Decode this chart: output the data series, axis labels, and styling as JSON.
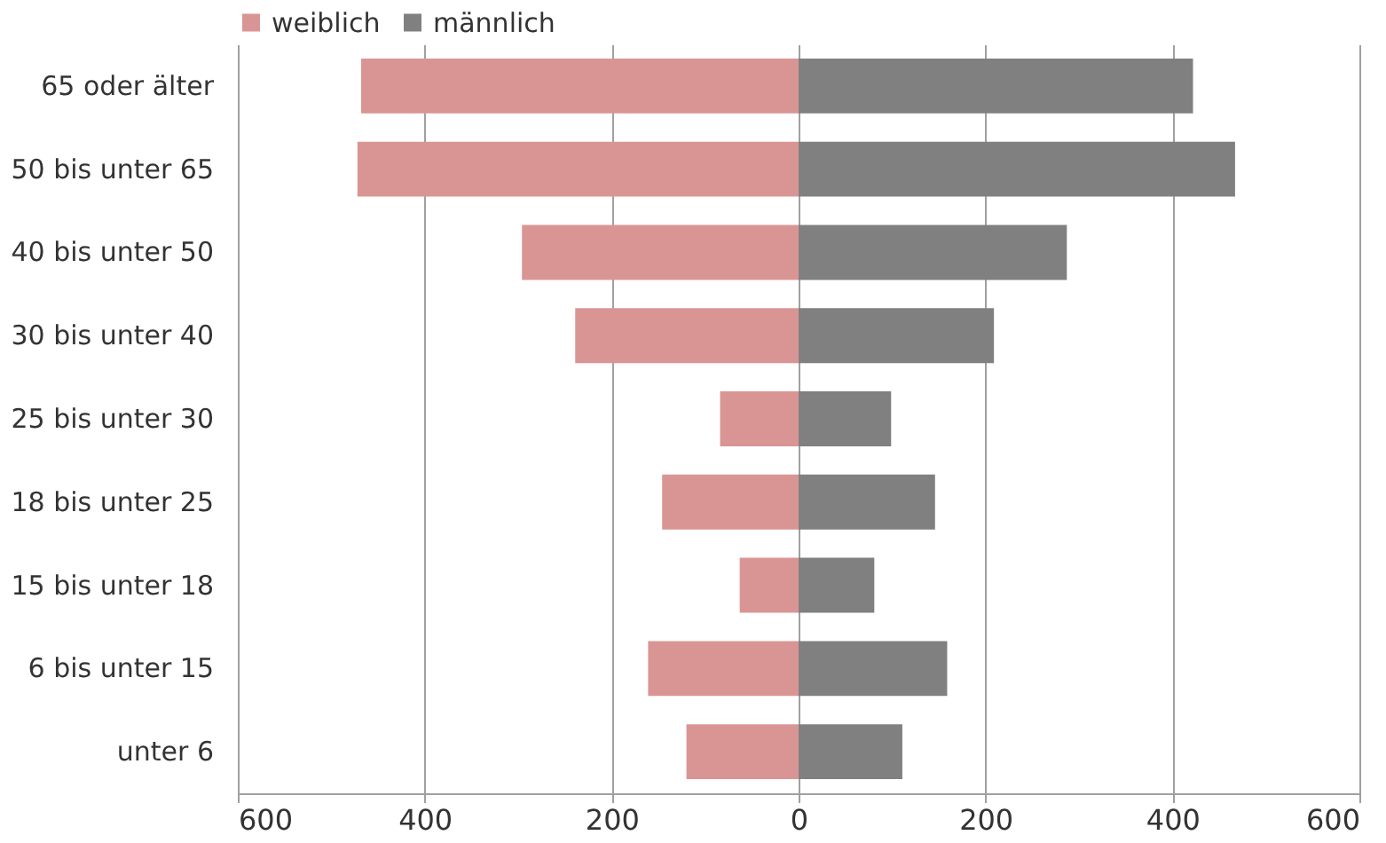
{
  "chart_data": {
    "type": "bar",
    "orientation": "horizontal",
    "stacked": true,
    "categories": [
      "65 oder älter",
      "50 bis unter 65",
      "40 bis unter 50",
      "30 bis unter 40",
      "25 bis unter 30",
      "18 bis unter 25",
      "15 bis unter 18",
      "6 bis unter 15",
      "unter 6"
    ],
    "series": [
      {
        "name": "weiblich",
        "color": "#d99594",
        "values": [
          -468,
          -472,
          -296,
          -239,
          -84,
          -146,
          -63,
          -161,
          -120
        ]
      },
      {
        "name": "männlich",
        "color": "#808080",
        "values": [
          422,
          467,
          287,
          209,
          99,
          146,
          81,
          159,
          111
        ]
      }
    ],
    "xlim": [
      -600,
      600
    ],
    "xticks": [
      {
        "value": -600,
        "label": "600"
      },
      {
        "value": -400,
        "label": "400"
      },
      {
        "value": -200,
        "label": "200"
      },
      0,
      200,
      400,
      600
    ],
    "grid": "x",
    "legend": "top"
  }
}
